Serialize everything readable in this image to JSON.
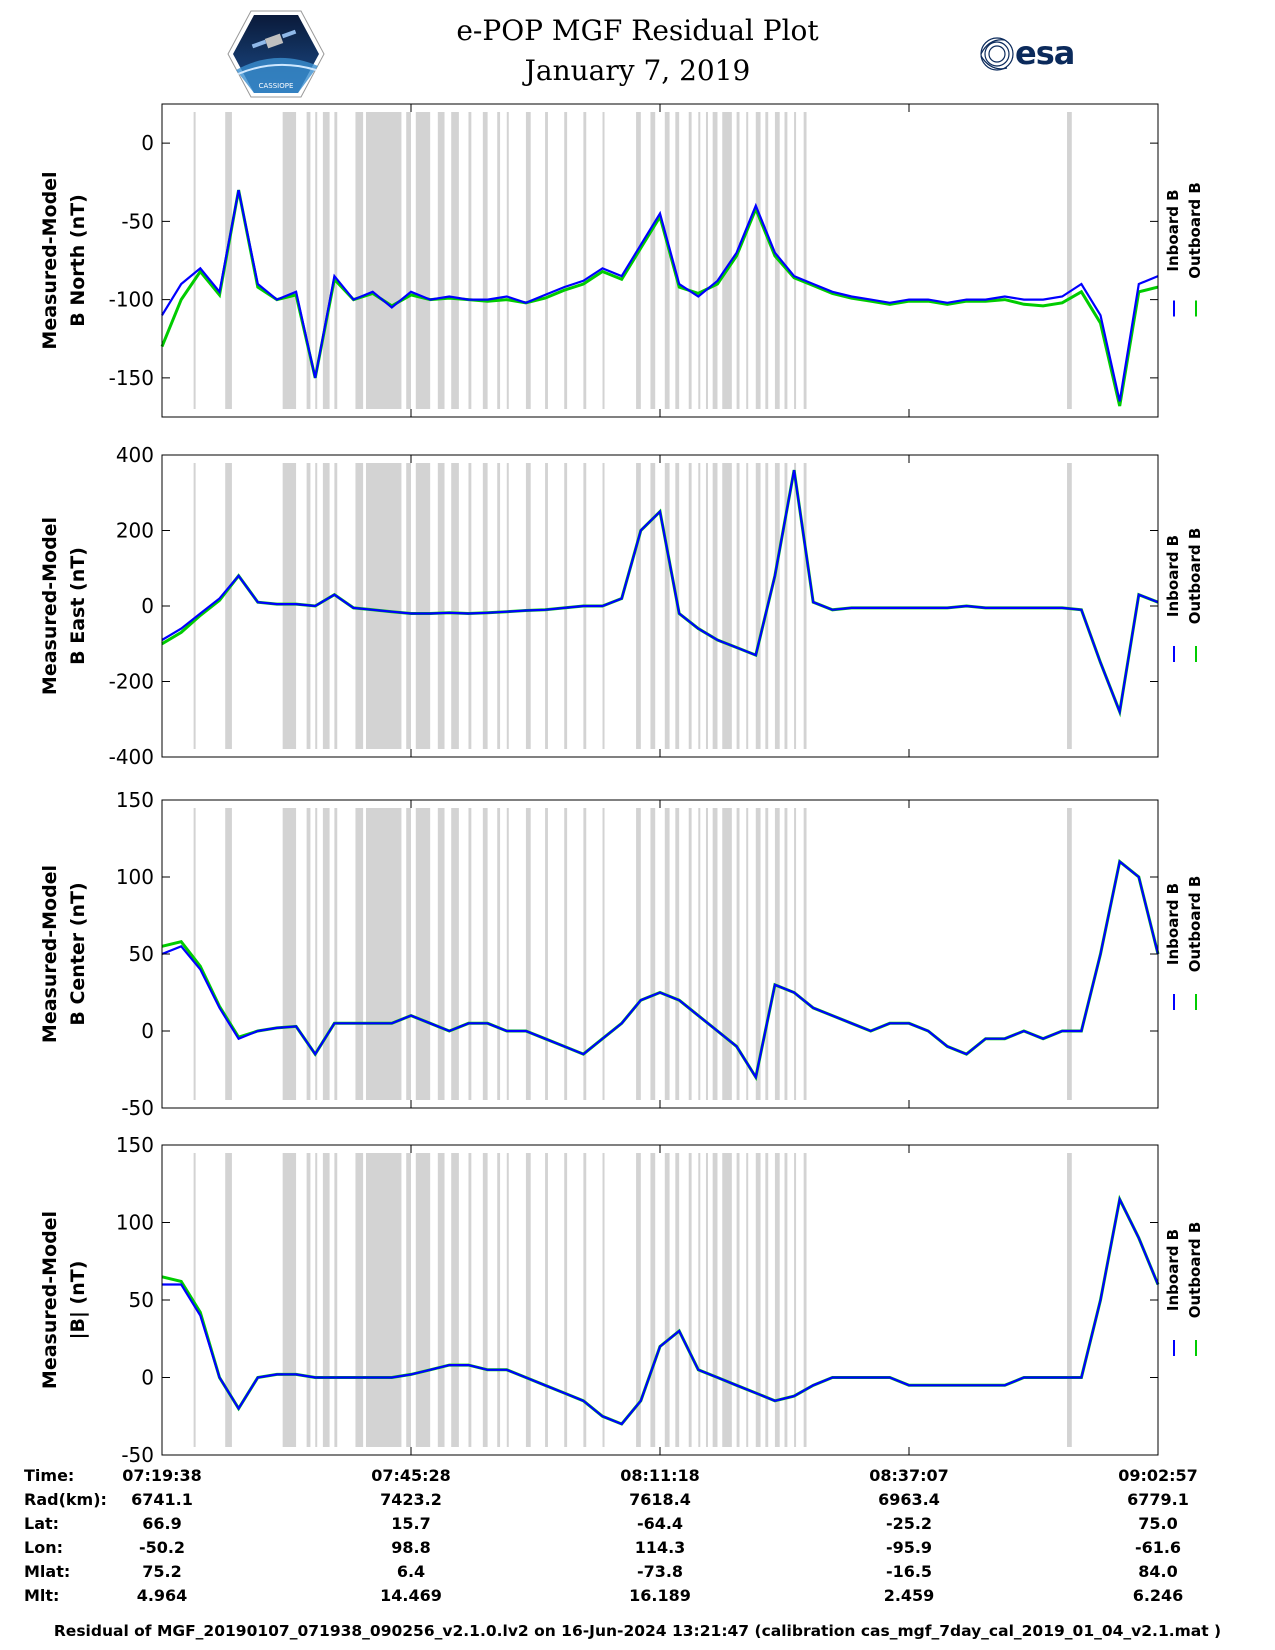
{
  "header": {
    "title_line1": "e-POP MGF Residual Plot",
    "title_line2": "January 7, 2019",
    "logo_left": "cassiope-mission-logo",
    "logo_right_text": "esa"
  },
  "colors": {
    "inboard": "#0000ff",
    "outboard": "#00cc00",
    "gap_shading": "#d3d3d3"
  },
  "legend": {
    "inboard": "Inboard B",
    "outboard": "Outboard B"
  },
  "chart_data": [
    {
      "type": "line",
      "ylabel": [
        "Measured-Model",
        "B North (nT)"
      ],
      "ylim": [
        -175,
        25
      ],
      "yticks": [
        0,
        -50,
        -100,
        -150
      ],
      "x": [
        0,
        2,
        4,
        6,
        8,
        10,
        12,
        14,
        16,
        18,
        20,
        22,
        24,
        26,
        28,
        30,
        32,
        34,
        36,
        38,
        40,
        42,
        44,
        46,
        48,
        50,
        52,
        54,
        56,
        58,
        60,
        62,
        64,
        66,
        68,
        70,
        72,
        74,
        76,
        78,
        80,
        82,
        84,
        86,
        88,
        90,
        92,
        94,
        96,
        98,
        100,
        102,
        104
      ],
      "series": [
        {
          "name": "Inboard B",
          "values": [
            -110,
            -90,
            -80,
            -95,
            -30,
            -90,
            -100,
            -95,
            -150,
            -85,
            -100,
            -95,
            -105,
            -95,
            -100,
            -98,
            -100,
            -100,
            -98,
            -102,
            -97,
            -92,
            -88,
            -80,
            -85,
            -65,
            -45,
            -90,
            -98,
            -88,
            -70,
            -40,
            -70,
            -85,
            -90,
            -95,
            -98,
            -100,
            -102,
            -100,
            -100,
            -102,
            -100,
            -100,
            -98,
            -100,
            -100,
            -98,
            -90,
            -110,
            -165,
            -90,
            -85
          ]
        },
        {
          "name": "Outboard B",
          "values": [
            -130,
            -100,
            -82,
            -97,
            -30,
            -92,
            -100,
            -97,
            -150,
            -87,
            -100,
            -96,
            -104,
            -97,
            -100,
            -99,
            -100,
            -101,
            -100,
            -102,
            -99,
            -94,
            -90,
            -82,
            -87,
            -67,
            -47,
            -92,
            -96,
            -90,
            -72,
            -42,
            -72,
            -86,
            -91,
            -96,
            -99,
            -101,
            -103,
            -101,
            -101,
            -103,
            -101,
            -101,
            -100,
            -103,
            -104,
            -102,
            -95,
            -115,
            -168,
            -95,
            -92
          ]
        }
      ]
    },
    {
      "type": "line",
      "ylabel": [
        "Measured-Model",
        "B East (nT)"
      ],
      "ylim": [
        -400,
        400
      ],
      "yticks": [
        400,
        200,
        0,
        -200,
        -400
      ],
      "x": [
        0,
        2,
        4,
        6,
        8,
        10,
        12,
        14,
        16,
        18,
        20,
        22,
        24,
        26,
        28,
        30,
        32,
        34,
        36,
        38,
        40,
        42,
        44,
        46,
        48,
        50,
        52,
        54,
        56,
        58,
        60,
        62,
        64,
        66,
        68,
        70,
        72,
        74,
        76,
        78,
        80,
        82,
        84,
        86,
        88,
        90,
        92,
        94,
        96,
        98,
        100,
        102,
        104
      ],
      "series": [
        {
          "name": "Inboard B",
          "values": [
            -90,
            -60,
            -20,
            20,
            80,
            10,
            5,
            5,
            0,
            30,
            -5,
            -10,
            -15,
            -20,
            -20,
            -18,
            -20,
            -18,
            -15,
            -12,
            -10,
            -5,
            0,
            0,
            20,
            200,
            250,
            -20,
            -60,
            -90,
            -110,
            -130,
            80,
            360,
            10,
            -10,
            -5,
            -5,
            -5,
            -5,
            -5,
            -5,
            0,
            -5,
            -5,
            -5,
            -5,
            -5,
            -10,
            -150,
            -280,
            30,
            10
          ]
        },
        {
          "name": "Outboard B",
          "values": [
            -100,
            -70,
            -25,
            15,
            80,
            10,
            5,
            5,
            0,
            30,
            -5,
            -10,
            -15,
            -20,
            -20,
            -18,
            -20,
            -18,
            -15,
            -12,
            -10,
            -5,
            0,
            0,
            20,
            200,
            250,
            -20,
            -60,
            -90,
            -110,
            -130,
            80,
            360,
            10,
            -10,
            -5,
            -5,
            -5,
            -5,
            -5,
            -5,
            0,
            -5,
            -5,
            -5,
            -5,
            -5,
            -10,
            -150,
            -280,
            30,
            10
          ]
        }
      ]
    },
    {
      "type": "line",
      "ylabel": [
        "Measured-Model",
        "B Center (nT)"
      ],
      "ylim": [
        -50,
        150
      ],
      "yticks": [
        150,
        100,
        50,
        0,
        -50
      ],
      "x": [
        0,
        2,
        4,
        6,
        8,
        10,
        12,
        14,
        16,
        18,
        20,
        22,
        24,
        26,
        28,
        30,
        32,
        34,
        36,
        38,
        40,
        42,
        44,
        46,
        48,
        50,
        52,
        54,
        56,
        58,
        60,
        62,
        64,
        66,
        68,
        70,
        72,
        74,
        76,
        78,
        80,
        82,
        84,
        86,
        88,
        90,
        92,
        94,
        96,
        98,
        100,
        102,
        104
      ],
      "series": [
        {
          "name": "Inboard B",
          "values": [
            50,
            55,
            40,
            15,
            -5,
            0,
            2,
            3,
            -15,
            5,
            5,
            5,
            5,
            10,
            5,
            0,
            5,
            5,
            0,
            0,
            -5,
            -10,
            -15,
            -5,
            5,
            20,
            25,
            20,
            10,
            0,
            -10,
            -30,
            30,
            25,
            15,
            10,
            5,
            0,
            5,
            5,
            0,
            -10,
            -15,
            -5,
            -5,
            0,
            -5,
            0,
            0,
            50,
            110,
            100,
            50
          ]
        },
        {
          "name": "Outboard B",
          "values": [
            55,
            58,
            42,
            16,
            -4,
            0,
            2,
            3,
            -15,
            5,
            5,
            5,
            5,
            10,
            5,
            0,
            5,
            5,
            0,
            0,
            -5,
            -10,
            -15,
            -5,
            5,
            20,
            25,
            20,
            10,
            0,
            -10,
            -30,
            30,
            25,
            15,
            10,
            5,
            0,
            5,
            5,
            0,
            -10,
            -15,
            -5,
            -5,
            0,
            -5,
            0,
            0,
            50,
            110,
            100,
            50
          ]
        }
      ]
    },
    {
      "type": "line",
      "ylabel": [
        "Measured-Model",
        "|B| (nT)"
      ],
      "ylim": [
        -50,
        150
      ],
      "yticks": [
        150,
        100,
        50,
        0,
        -50
      ],
      "x": [
        0,
        2,
        4,
        6,
        8,
        10,
        12,
        14,
        16,
        18,
        20,
        22,
        24,
        26,
        28,
        30,
        32,
        34,
        36,
        38,
        40,
        42,
        44,
        46,
        48,
        50,
        52,
        54,
        56,
        58,
        60,
        62,
        64,
        66,
        68,
        70,
        72,
        74,
        76,
        78,
        80,
        82,
        84,
        86,
        88,
        90,
        92,
        94,
        96,
        98,
        100,
        102,
        104
      ],
      "series": [
        {
          "name": "Inboard B",
          "values": [
            60,
            60,
            40,
            0,
            -20,
            0,
            2,
            2,
            0,
            0,
            0,
            0,
            0,
            2,
            5,
            8,
            8,
            5,
            5,
            0,
            -5,
            -10,
            -15,
            -25,
            -30,
            -15,
            20,
            30,
            5,
            0,
            -5,
            -10,
            -15,
            -12,
            -5,
            0,
            0,
            0,
            0,
            -5,
            -5,
            -5,
            -5,
            -5,
            -5,
            0,
            0,
            0,
            0,
            50,
            115,
            90,
            60
          ]
        },
        {
          "name": "Outboard B",
          "values": [
            65,
            62,
            42,
            0,
            -20,
            0,
            2,
            2,
            0,
            0,
            0,
            0,
            0,
            2,
            5,
            8,
            8,
            5,
            5,
            0,
            -5,
            -10,
            -15,
            -25,
            -30,
            -15,
            20,
            30,
            5,
            0,
            -5,
            -10,
            -15,
            -12,
            -5,
            0,
            0,
            0,
            0,
            -5,
            -5,
            -5,
            -5,
            -5,
            -5,
            0,
            0,
            0,
            0,
            50,
            115,
            90,
            60
          ]
        }
      ]
    }
  ],
  "gaps": [
    [
      3.3,
      3.5
    ],
    [
      6.6,
      7.3
    ],
    [
      12.6,
      14.0
    ],
    [
      15.1,
      15.5
    ],
    [
      16.0,
      16.2
    ],
    [
      16.8,
      17.5
    ],
    [
      18.0,
      18.3
    ],
    [
      20.2,
      21.0
    ],
    [
      22.0,
      22.3
    ],
    [
      23.0,
      23.5
    ],
    [
      21.3,
      25.0
    ],
    [
      25.5,
      26.0
    ],
    [
      26.5,
      28.0
    ],
    [
      28.8,
      29.5
    ],
    [
      30.2,
      31.0
    ],
    [
      32.0,
      32.3
    ],
    [
      33.5,
      34.0
    ],
    [
      35.0,
      35.3
    ],
    [
      36.0,
      36.2
    ],
    [
      38.0,
      38.5
    ],
    [
      40.0,
      40.3
    ],
    [
      42.0,
      42.3
    ],
    [
      44.0,
      44.3
    ],
    [
      46.0,
      46.2
    ],
    [
      49.5,
      50.0
    ],
    [
      51.0,
      51.5
    ],
    [
      52.5,
      53.0
    ],
    [
      53.6,
      54.0
    ],
    [
      55.0,
      55.3
    ],
    [
      56.0,
      56.2
    ],
    [
      56.8,
      57.0
    ],
    [
      57.5,
      58.0
    ],
    [
      58.5,
      59.5
    ],
    [
      60.0,
      60.3
    ],
    [
      61.0,
      61.2
    ],
    [
      62.0,
      62.5
    ],
    [
      63.0,
      63.3
    ],
    [
      64.0,
      64.5
    ],
    [
      65.0,
      65.3
    ],
    [
      66.0,
      66.2
    ],
    [
      67.0,
      67.3
    ],
    [
      94.5,
      95.0
    ]
  ],
  "info": {
    "labels": [
      "Time:",
      "Rad(km):",
      "Lat:",
      "Lon:",
      "Mlat:",
      "Mlt:"
    ],
    "columns": [
      [
        "07:19:38",
        "6741.1",
        "66.9",
        "-50.2",
        "75.2",
        "4.964"
      ],
      [
        "07:45:28",
        "7423.2",
        "15.7",
        "98.8",
        "6.4",
        "14.469"
      ],
      [
        "08:11:18",
        "7618.4",
        "-64.4",
        "114.3",
        "-73.8",
        "16.189"
      ],
      [
        "08:37:07",
        "6963.4",
        "-25.2",
        "-95.9",
        "-16.5",
        "2.459"
      ],
      [
        "09:02:57",
        "6779.1",
        "75.0",
        "-61.6",
        "84.0",
        "6.246"
      ]
    ]
  },
  "footer": "Residual of MGF_20190107_071938_090256_v2.1.0.lv2 on 16-Jun-2024 13:21:47 (calibration cas_mgf_7day_cal_2019_01_04_v2.1.mat )"
}
